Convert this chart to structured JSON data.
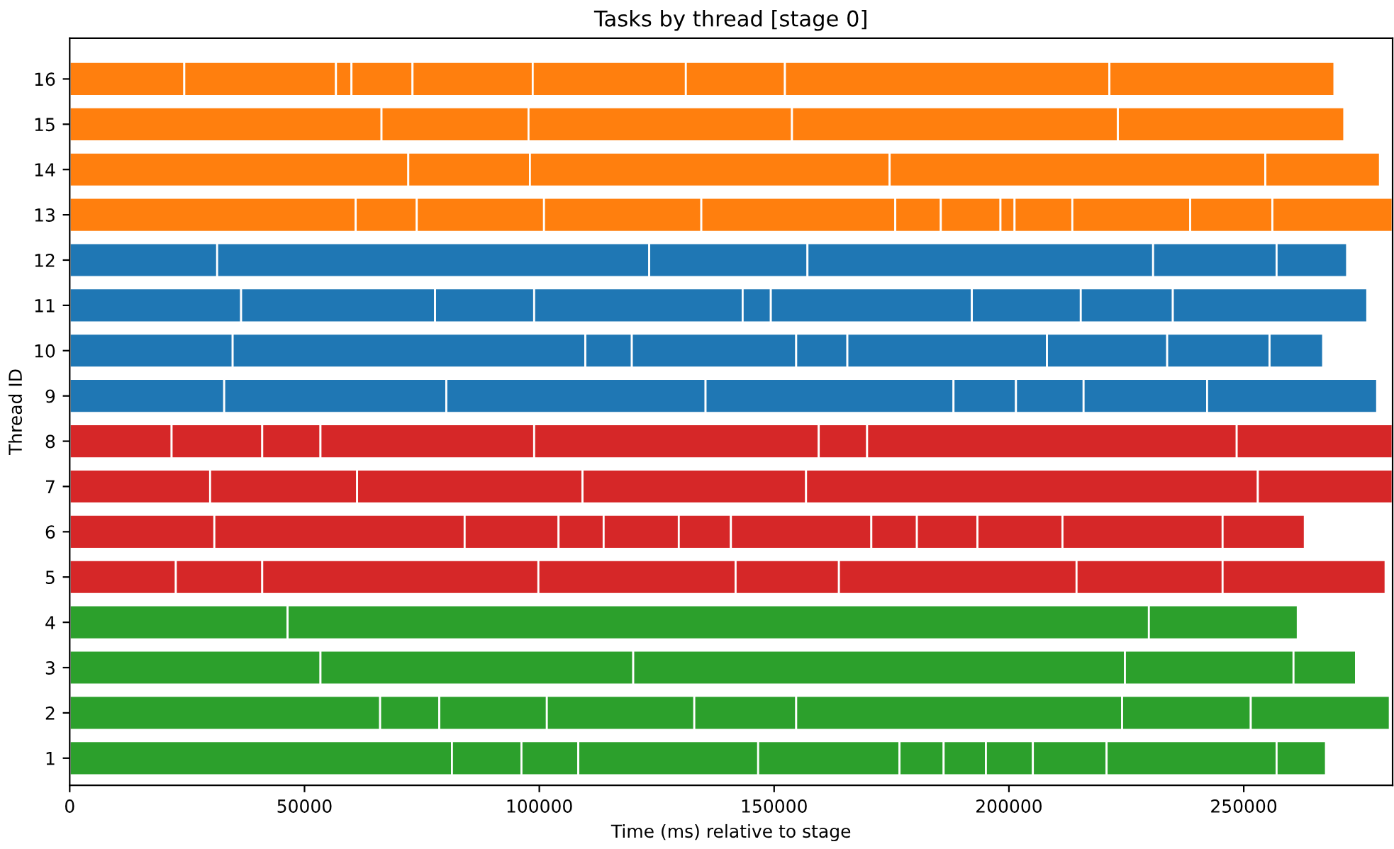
{
  "chart_data": {
    "type": "bar",
    "orientation": "horizontal",
    "stacked": true,
    "title": "Tasks by thread [stage 0]",
    "xlabel": "Time (ms) relative to stage",
    "ylabel": "Thread ID",
    "categories": [
      "16",
      "15",
      "14",
      "13",
      "12",
      "11",
      "10",
      "9",
      "8",
      "7",
      "6",
      "5",
      "4",
      "3",
      "2",
      "1"
    ],
    "xlim": [
      0,
      281700
    ],
    "xticks": [
      0,
      50000,
      100000,
      150000,
      200000,
      250000
    ],
    "grid": false,
    "legend": false,
    "series": [
      {
        "colors": [
          "#ff7f0e",
          "#ff7f0e",
          "#ff7f0e",
          "#ff7f0e",
          "#1f77b4",
          "#1f77b4",
          "#1f77b4",
          "#1f77b4",
          "#d62728",
          "#d62728",
          "#d62728",
          "#d62728",
          "#2ca02c",
          "#2ca02c",
          "#2ca02c",
          "#2ca02c"
        ],
        "values": [
          24400,
          66400,
          72100,
          60900,
          31400,
          36500,
          34700,
          32900,
          21700,
          29900,
          30800,
          22600,
          46400,
          53400,
          66100,
          81400
        ]
      },
      {
        "colors": [
          "#ff7f0e",
          "#ff7f0e",
          "#ff7f0e",
          "#ff7f0e",
          "#1f77b4",
          "#1f77b4",
          "#1f77b4",
          "#1f77b4",
          "#d62728",
          "#d62728",
          "#d62728",
          "#d62728",
          "#2ca02c",
          "#2ca02c",
          "#2ca02c",
          "#2ca02c"
        ],
        "values": [
          32300,
          31300,
          25900,
          13000,
          92000,
          41300,
          75100,
          47300,
          19300,
          31300,
          53300,
          18400,
          183400,
          66600,
          12600,
          14800
        ]
      },
      {
        "colors": [
          "#ff7f0e",
          "#ff7f0e",
          "#ff7f0e",
          "#ff7f0e",
          "#1f77b4",
          "#1f77b4",
          "#1f77b4",
          "#1f77b4",
          "#d62728",
          "#d62728",
          "#d62728",
          "#d62728",
          "#2ca02c",
          "#2ca02c",
          "#2ca02c",
          "#2ca02c"
        ],
        "values": [
          3300,
          56100,
          76600,
          27100,
          33700,
          21100,
          9900,
          55200,
          12400,
          48000,
          20000,
          58800,
          31700,
          104700,
          22900,
          12100
        ]
      },
      {
        "colors": [
          "#ff7f0e",
          "#ff7f0e",
          "#ff7f0e",
          "#ff7f0e",
          "#1f77b4",
          "#1f77b4",
          "#1f77b4",
          "#1f77b4",
          "#d62728",
          "#d62728",
          "#d62728",
          "#d62728",
          "#2ca02c",
          "#2ca02c",
          "#2ca02c",
          "#2ca02c"
        ],
        "values": [
          13000,
          69400,
          80000,
          33500,
          73600,
          44400,
          35000,
          52800,
          45500,
          47600,
          9600,
          42000,
          null,
          35900,
          31400,
          38300
        ]
      },
      {
        "colors": [
          "#ff7f0e",
          "#ff7f0e",
          "#ff7f0e",
          "#ff7f0e",
          "#1f77b4",
          "#1f77b4",
          "#1f77b4",
          "#1f77b4",
          "#d62728",
          "#d62728",
          "#d62728",
          "#d62728",
          "#2ca02c",
          "#2ca02c",
          "#2ca02c",
          "#2ca02c"
        ],
        "values": [
          25600,
          48200,
          24400,
          41300,
          26300,
          6000,
          10900,
          13300,
          60600,
          96200,
          16000,
          22000,
          null,
          13300,
          21700,
          30100
        ]
      },
      {
        "colors": [
          "#ff7f0e",
          "#ff7f0e",
          "#ff7f0e",
          "#ff7f0e",
          "#1f77b4",
          "#1f77b4",
          "#1f77b4",
          "#1f77b4",
          "#d62728",
          "#d62728",
          "#d62728",
          "#d62728",
          "#2ca02c",
          "#2ca02c",
          "#2ca02c",
          "#2ca02c"
        ],
        "values": [
          32600,
          null,
          null,
          9700,
          15000,
          42800,
          42500,
          14400,
          10300,
          28700,
          11100,
          50600,
          null,
          null,
          69400,
          9400
        ]
      },
      {
        "colors": [
          "#ff7f0e",
          "#ff7f0e",
          "#ff7f0e",
          "#ff7f0e",
          "#1f77b4",
          "#1f77b4",
          "#1f77b4",
          "#1f77b4",
          "#d62728",
          "#d62728",
          "#d62728",
          "#d62728",
          "#2ca02c",
          "#2ca02c",
          "#2ca02c",
          "#2ca02c"
        ],
        "values": [
          21100,
          null,
          null,
          12700,
          null,
          23200,
          25600,
          26300,
          78700,
          null,
          29900,
          31100,
          null,
          null,
          27400,
          9000
        ]
      },
      {
        "colors": [
          "#ff7f0e",
          "#ff7f0e",
          "#ff7f0e",
          "#ff7f0e",
          "#1f77b4",
          "#1f77b4",
          "#1f77b4",
          "#1f77b4",
          "#d62728",
          "#d62728",
          "#d62728",
          "#d62728",
          "#2ca02c",
          "#2ca02c",
          "#2ca02c",
          "#2ca02c"
        ],
        "values": [
          69100,
          null,
          null,
          3000,
          null,
          19600,
          21800,
          36200,
          33200,
          null,
          9700,
          34700,
          null,
          null,
          29600,
          10000
        ]
      },
      {
        "colors": [
          "#ff7f0e",
          "#ff7f0e",
          "#ff7f0e",
          "#ff7f0e",
          "#1f77b4",
          "#1f77b4",
          "#1f77b4",
          "#1f77b4",
          "#d62728",
          "#d62728",
          "#d62728",
          "#d62728",
          "#2ca02c",
          "#2ca02c",
          "#2ca02c",
          "#2ca02c"
        ],
        "values": [
          47900,
          null,
          null,
          12300,
          null,
          41400,
          11400,
          null,
          null,
          null,
          12900,
          null,
          null,
          null,
          null,
          15700
        ]
      },
      {
        "colors": [
          "#ff7f0e",
          "#ff7f0e",
          "#ff7f0e",
          "#ff7f0e",
          "#1f77b4",
          "#1f77b4",
          "#1f77b4",
          "#1f77b4",
          "#d62728",
          "#d62728",
          "#d62728",
          "#d62728",
          "#2ca02c",
          "#2ca02c",
          "#2ca02c",
          "#2ca02c"
        ],
        "values": [
          null,
          null,
          null,
          25100,
          null,
          null,
          null,
          null,
          null,
          null,
          18100,
          null,
          null,
          null,
          null,
          36200
        ]
      },
      {
        "colors": [
          "#ff7f0e",
          "#ff7f0e",
          "#ff7f0e",
          "#ff7f0e",
          "#1f77b4",
          "#1f77b4",
          "#1f77b4",
          "#1f77b4",
          "#d62728",
          "#d62728",
          "#d62728",
          "#d62728",
          "#2ca02c",
          "#2ca02c",
          "#2ca02c",
          "#2ca02c"
        ],
        "values": [
          null,
          null,
          null,
          17500,
          null,
          null,
          null,
          null,
          null,
          null,
          34100,
          null,
          null,
          null,
          null,
          10500
        ]
      },
      {
        "colors": [
          "#ff7f0e",
          "#ff7f0e",
          "#ff7f0e",
          "#ff7f0e",
          "#1f77b4",
          "#1f77b4",
          "#1f77b4",
          "#1f77b4",
          "#d62728",
          "#d62728",
          "#d62728",
          "#d62728",
          "#2ca02c",
          "#2ca02c",
          "#2ca02c",
          "#2ca02c"
        ],
        "values": [
          null,
          null,
          null,
          25600,
          null,
          null,
          null,
          null,
          null,
          null,
          17500,
          null,
          null,
          null,
          null,
          null
        ]
      }
    ]
  }
}
